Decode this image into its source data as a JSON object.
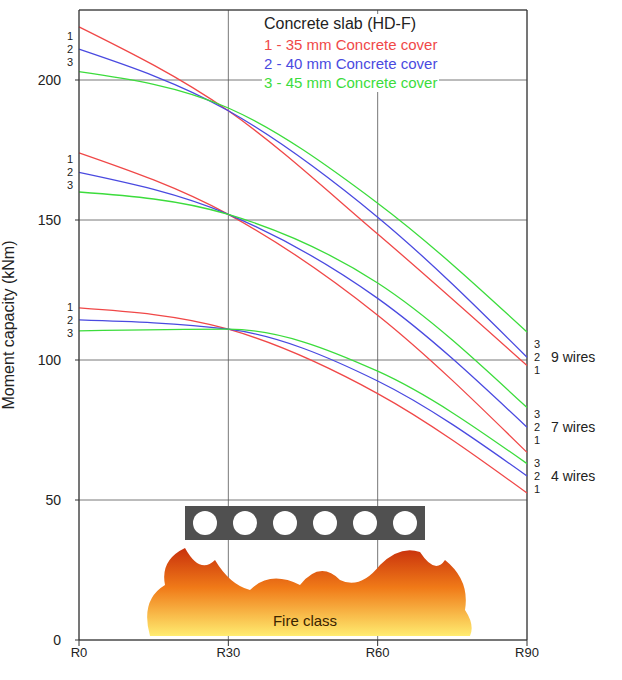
{
  "chart_data": {
    "type": "line",
    "title": "Concrete slab (HD-F)",
    "y_label": "Moment capacity (kNm)",
    "categories": [
      "R0",
      "R30",
      "R60",
      "R90"
    ],
    "ylim": [
      0,
      225
    ],
    "yticks": [
      0,
      50,
      100,
      150,
      200
    ],
    "grid": true,
    "legend": "top-right",
    "annotation": "Fire class",
    "legend_entries": [
      {
        "text": "1 - 35 mm Concrete cover",
        "color": "#f04848"
      },
      {
        "text": "2 - 40 mm Concrete cover",
        "color": "#4a4ae0"
      },
      {
        "text": "3 - 45 mm Concrete cover",
        "color": "#3cdc3c"
      }
    ],
    "groups": [
      {
        "name": "9 wires",
        "series": [
          {
            "label": "1",
            "color": "#f04848",
            "values": [
              219,
              189,
              145,
              98
            ]
          },
          {
            "label": "2",
            "color": "#4a4ae0",
            "values": [
              211,
              189,
              151,
              101
            ]
          },
          {
            "label": "3",
            "color": "#3cdc3c",
            "values": [
              203,
              190,
              156,
              110
            ]
          }
        ]
      },
      {
        "name": "7 wires",
        "series": [
          {
            "label": "1",
            "color": "#f04848",
            "values": [
              174,
              152,
              116,
              67
            ]
          },
          {
            "label": "2",
            "color": "#4a4ae0",
            "values": [
              167,
              152,
              122,
              76
            ]
          },
          {
            "label": "3",
            "color": "#3cdc3c",
            "values": [
              160,
              152,
              127.5,
              83
            ]
          }
        ]
      },
      {
        "name": "4 wires",
        "series": [
          {
            "label": "1",
            "color": "#f04848",
            "values": [
              118.6,
              111,
              88,
              52.5
            ]
          },
          {
            "label": "2",
            "color": "#4a4ae0",
            "values": [
              114.3,
              111,
              92.5,
              58.6
            ]
          },
          {
            "label": "3",
            "color": "#3cdc3c",
            "values": [
              110.4,
              111,
              96,
              63
            ]
          }
        ]
      }
    ]
  }
}
